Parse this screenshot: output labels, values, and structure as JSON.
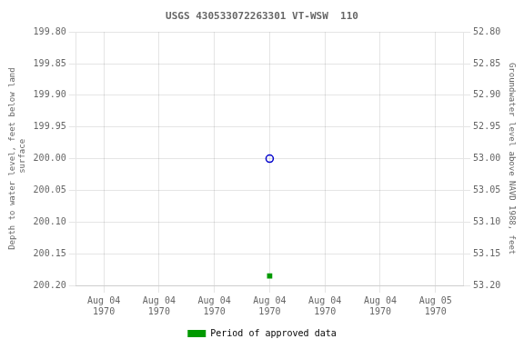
{
  "chart_data": {
    "type": "scatter",
    "title": "USGS 430533072263301 VT-WSW  110",
    "ylabel": "Depth to water level, feet below land\n surface",
    "y2label": "Groundwater level above NAVD 1988, feet",
    "categories": [
      "Aug 04\n1970",
      "Aug 04\n1970",
      "Aug 04\n1970",
      "Aug 04\n1970",
      "Aug 04\n1970",
      "Aug 04\n1970",
      "Aug 05\n1970"
    ],
    "series": [
      {
        "color": "#0000cc",
        "marker": "circle",
        "values": [
          null,
          null,
          null,
          200.0,
          null,
          null,
          null
        ]
      },
      {
        "name": "Period of approved data",
        "color": "#009900",
        "marker": "square",
        "values": [
          null,
          null,
          null,
          200.185,
          null,
          null,
          null
        ]
      }
    ],
    "ylim": [
      200.2,
      199.8
    ],
    "yticks": [
      {
        "value": 199.8,
        "label": "199.80"
      },
      {
        "value": 199.85,
        "label": "199.85"
      },
      {
        "value": 199.9,
        "label": "199.90"
      },
      {
        "value": 199.95,
        "label": "199.95"
      },
      {
        "value": 200.0,
        "label": "200.00"
      },
      {
        "value": 200.05,
        "label": "200.05"
      },
      {
        "value": 200.1,
        "label": "200.10"
      },
      {
        "value": 200.15,
        "label": "200.15"
      },
      {
        "value": 200.2,
        "label": "200.20"
      }
    ],
    "y2lim": [
      53.2,
      52.8
    ],
    "y2ticks": [
      {
        "value": 53.2,
        "label": "53.20"
      },
      {
        "value": 53.15,
        "label": "53.15"
      },
      {
        "value": 53.1,
        "label": "53.10"
      },
      {
        "value": 53.05,
        "label": "53.05"
      },
      {
        "value": 53.0,
        "label": "53.00"
      },
      {
        "value": 52.95,
        "label": "52.95"
      },
      {
        "value": 52.9,
        "label": "52.90"
      },
      {
        "value": 52.85,
        "label": "52.85"
      },
      {
        "value": 52.8,
        "label": "52.80"
      }
    ],
    "grid": true,
    "legend": "bottom"
  }
}
